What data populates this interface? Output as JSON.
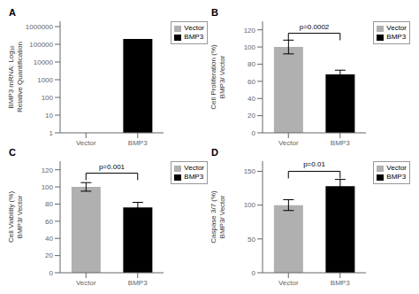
{
  "chart_data": [
    {
      "type": "bar",
      "title": "A",
      "categories": [
        "Vector",
        "BMP3"
      ],
      "values": [
        1,
        200000
      ],
      "colors": [
        "#b0b0b0",
        "#000000"
      ],
      "ylabel": "BMP3 mRNA: Log₁₀\nRelative Quantification",
      "log": "y",
      "ylim": [
        1,
        2000000
      ],
      "yticks": [
        1,
        10,
        100,
        1000,
        10000,
        100000,
        1000000
      ],
      "legend": "upper right",
      "grid": false
    },
    {
      "type": "bar",
      "title": "B",
      "categories": [
        "Vector",
        "BMP3"
      ],
      "values": [
        100,
        68
      ],
      "errors": [
        8,
        5
      ],
      "colors": [
        "#b0b0b0",
        "#000000"
      ],
      "ylabel": "Cell Proliferation (%)\nBMP3/ Vector",
      "ylim": [
        0,
        130
      ],
      "yticks": [
        0,
        20,
        40,
        60,
        80,
        100,
        120
      ],
      "annotations": [
        {
          "text": "p=0.0002",
          "x": [
            "Vector",
            "BMP3"
          ],
          "y": 116
        }
      ],
      "legend": "upper right",
      "grid": false
    },
    {
      "type": "bar",
      "title": "C",
      "categories": [
        "Vector",
        "BMP3"
      ],
      "values": [
        100,
        76
      ],
      "errors": [
        5,
        6
      ],
      "colors": [
        "#b0b0b0",
        "#000000"
      ],
      "ylabel": "Cell Viability (%)\nBMP3/ Vector",
      "ylim": [
        0,
        130
      ],
      "yticks": [
        0,
        20,
        40,
        60,
        80,
        100,
        120
      ],
      "annotations": [
        {
          "text": "p=0.001",
          "x": [
            "Vector",
            "BMP3"
          ],
          "y": 116
        }
      ],
      "legend": "upper right",
      "grid": false
    },
    {
      "type": "bar",
      "title": "D",
      "categories": [
        "Vector",
        "BMP3"
      ],
      "values": [
        100,
        128
      ],
      "errors": [
        8,
        10
      ],
      "colors": [
        "#b0b0b0",
        "#000000"
      ],
      "ylabel": "Caspase 3/7 (%)\nBMP3/ Vector",
      "ylim": [
        0,
        165
      ],
      "yticks": [
        0,
        50,
        100,
        150
      ],
      "annotations": [
        {
          "text": "p=0.01",
          "x": [
            "Vector",
            "BMP3"
          ],
          "y": 150
        }
      ],
      "legend": "upper right",
      "grid": false
    }
  ]
}
